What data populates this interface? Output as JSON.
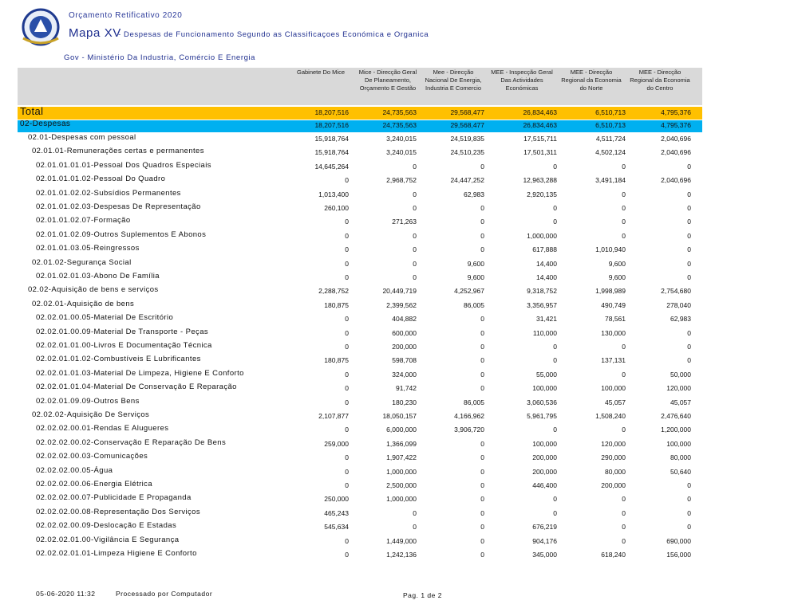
{
  "header": {
    "budget": "Orçamento Retificativo 2020",
    "map": "Mapa XV",
    "subtitle": "- Despesas de Funcionamento Segundo as Classificaçoes Económica e Organica",
    "ministry": "Gov - Ministério Da Industria, Comércio E Energia"
  },
  "table": {
    "columns": [
      [
        "Gabinete Do Mice"
      ],
      [
        "Mice - Direcção Geral",
        "De Planeamento,",
        "Orçamento E Gestão"
      ],
      [
        "Mee - Direcção",
        "Nacional De Energia,",
        "Industria E Comercio"
      ],
      [
        "MEE - Inspecção Geral",
        "Das Actividades",
        "Económicas"
      ],
      [
        "MEE - Direcção",
        "Regional da Economia",
        "do Norte"
      ],
      [
        "MEE - Direcção",
        "Regional da Economia",
        "do Centro"
      ]
    ],
    "total": {
      "label": "Total",
      "values": [
        "18,207,516",
        "24,735,563",
        "29,568,477",
        "26,834,463",
        "6,510,713",
        "4,795,376"
      ]
    },
    "group": {
      "label": "02-Despesas",
      "values": [
        "18,207,516",
        "24,735,563",
        "29,568,477",
        "26,834,463",
        "6,510,713",
        "4,795,376"
      ]
    },
    "rows": [
      {
        "label": "02.01-Despesas com pessoal",
        "values": [
          "15,918,764",
          "3,240,015",
          "24,519,835",
          "17,515,711",
          "4,511,724",
          "2,040,696"
        ]
      },
      {
        "label": "02.01.01-Remunerações certas e permanentes",
        "values": [
          "15,918,764",
          "3,240,015",
          "24,510,235",
          "17,501,311",
          "4,502,124",
          "2,040,696"
        ]
      },
      {
        "label": "02.01.01.01.01-Pessoal Dos Quadros Especiais",
        "values": [
          "14,645,264",
          "0",
          "0",
          "0",
          "0",
          "0"
        ]
      },
      {
        "label": "02.01.01.01.02-Pessoal Do Quadro",
        "values": [
          "0",
          "2,968,752",
          "24,447,252",
          "12,963,288",
          "3,491,184",
          "2,040,696"
        ]
      },
      {
        "label": "02.01.01.02.02-Subsídios Permanentes",
        "values": [
          "1,013,400",
          "0",
          "62,983",
          "2,920,135",
          "0",
          "0"
        ]
      },
      {
        "label": "02.01.01.02.03-Despesas De Representação",
        "values": [
          "260,100",
          "0",
          "0",
          "0",
          "0",
          "0"
        ]
      },
      {
        "label": "02.01.01.02.07-Formação",
        "values": [
          "0",
          "271,263",
          "0",
          "0",
          "0",
          "0"
        ]
      },
      {
        "label": "02.01.01.02.09-Outros Suplementos E Abonos",
        "values": [
          "0",
          "0",
          "0",
          "1,000,000",
          "0",
          "0"
        ]
      },
      {
        "label": "02.01.01.03.05-Reingressos",
        "values": [
          "0",
          "0",
          "0",
          "617,888",
          "1,010,940",
          "0"
        ]
      },
      {
        "label": "02.01.02-Segurança Social",
        "values": [
          "0",
          "0",
          "9,600",
          "14,400",
          "9,600",
          "0"
        ]
      },
      {
        "label": "02.01.02.01.03-Abono De Família",
        "values": [
          "0",
          "0",
          "9,600",
          "14,400",
          "9,600",
          "0"
        ]
      },
      {
        "label": "02.02-Aquisição de bens e serviços",
        "values": [
          "2,288,752",
          "20,449,719",
          "4,252,967",
          "9,318,752",
          "1,998,989",
          "2,754,680"
        ]
      },
      {
        "label": "02.02.01-Aquisição de bens",
        "values": [
          "180,875",
          "2,399,562",
          "86,005",
          "3,356,957",
          "490,749",
          "278,040"
        ]
      },
      {
        "label": "02.02.01.00.05-Material De Escritório",
        "values": [
          "0",
          "404,882",
          "0",
          "31,421",
          "78,561",
          "62,983"
        ]
      },
      {
        "label": "02.02.01.00.09-Material De Transporte - Peças",
        "values": [
          "0",
          "600,000",
          "0",
          "110,000",
          "130,000",
          "0"
        ]
      },
      {
        "label": "02.02.01.01.00-Livros E Documentação Técnica",
        "values": [
          "0",
          "200,000",
          "0",
          "0",
          "0",
          "0"
        ]
      },
      {
        "label": "02.02.01.01.02-Combustíveis E Lubrificantes",
        "values": [
          "180,875",
          "598,708",
          "0",
          "0",
          "137,131",
          "0"
        ]
      },
      {
        "label": "02.02.01.01.03-Material De Limpeza, Higiene E Conforto",
        "values": [
          "0",
          "324,000",
          "0",
          "55,000",
          "0",
          "50,000"
        ]
      },
      {
        "label": "02.02.01.01.04-Material De Conservação E Reparação",
        "values": [
          "0",
          "91,742",
          "0",
          "100,000",
          "100,000",
          "120,000"
        ]
      },
      {
        "label": "02.02.01.09.09-Outros Bens",
        "values": [
          "0",
          "180,230",
          "86,005",
          "3,060,536",
          "45,057",
          "45,057"
        ]
      },
      {
        "label": "02.02.02-Aquisição De Serviços",
        "values": [
          "2,107,877",
          "18,050,157",
          "4,166,962",
          "5,961,795",
          "1,508,240",
          "2,476,640"
        ]
      },
      {
        "label": "02.02.02.00.01-Rendas E Alugueres",
        "values": [
          "0",
          "6,000,000",
          "3,906,720",
          "0",
          "0",
          "1,200,000"
        ]
      },
      {
        "label": "02.02.02.00.02-Conservação E Reparação De Bens",
        "values": [
          "259,000",
          "1,366,099",
          "0",
          "100,000",
          "120,000",
          "100,000"
        ]
      },
      {
        "label": "02.02.02.00.03-Comunicações",
        "values": [
          "0",
          "1,907,422",
          "0",
          "200,000",
          "290,000",
          "80,000"
        ]
      },
      {
        "label": "02.02.02.00.05-Água",
        "values": [
          "0",
          "1,000,000",
          "0",
          "200,000",
          "80,000",
          "50,640"
        ]
      },
      {
        "label": "02.02.02.00.06-Energia Elétrica",
        "values": [
          "0",
          "2,500,000",
          "0",
          "446,400",
          "200,000",
          "0"
        ]
      },
      {
        "label": "02.02.02.00.07-Publicidade E Propaganda",
        "values": [
          "250,000",
          "1,000,000",
          "0",
          "0",
          "0",
          "0"
        ]
      },
      {
        "label": "02.02.02.00.08-Representação Dos Serviços",
        "values": [
          "465,243",
          "0",
          "0",
          "0",
          "0",
          "0"
        ]
      },
      {
        "label": "02.02.02.00.09-Deslocação E Estadas",
        "values": [
          "545,634",
          "0",
          "0",
          "676,219",
          "0",
          "0"
        ]
      },
      {
        "label": "02.02.02.01.00-Vigilância E Segurança",
        "values": [
          "0",
          "1,449,000",
          "0",
          "904,176",
          "0",
          "690,000"
        ]
      },
      {
        "label": "02.02.02.01.01-Limpeza Higiene E Conforto",
        "values": [
          "0",
          "1,242,136",
          "0",
          "345,000",
          "618,240",
          "156,000"
        ]
      }
    ]
  },
  "footer": {
    "date": "05-06-2020 11:32",
    "processed": "Processado por Computador",
    "page": "Pag. 1 de 2"
  }
}
